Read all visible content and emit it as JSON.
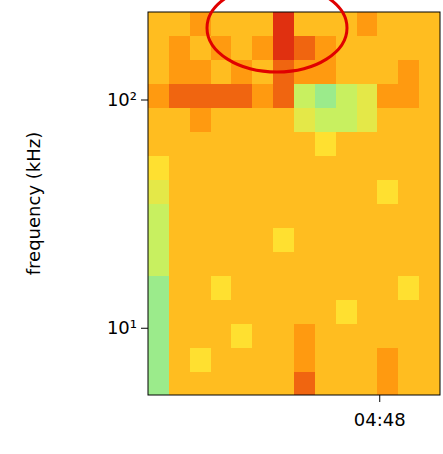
{
  "chart_data": {
    "type": "heatmap",
    "ylabel": "frequency (kHz)",
    "log": "y",
    "xlim": [
      283.0,
      289.3
    ],
    "xticks": [
      {
        "value": 288,
        "label": "04:48"
      }
    ],
    "ylim": [
      5.1,
      243
    ],
    "yticks": [
      {
        "value": 10,
        "label": "10¹"
      },
      {
        "value": 100,
        "label": "10²"
      }
    ],
    "x_edges": [
      283.0,
      283.45,
      283.9,
      284.35,
      284.8,
      285.25,
      285.7,
      286.15,
      286.6,
      287.05,
      287.5,
      287.95,
      288.4,
      288.85,
      289.3
    ],
    "y_edges": [
      5.1,
      6.49,
      8.27,
      10.5,
      13.4,
      17.1,
      21.7,
      27.7,
      35.2,
      44.8,
      57.1,
      72.7,
      92.5,
      117.8,
      150,
      191,
      243
    ],
    "clim": [
      0,
      10
    ],
    "cells": [
      [
        2,
        6,
        6,
        6,
        6,
        6,
        6,
        8,
        6,
        6,
        6,
        7,
        6,
        6
      ],
      [
        2,
        6,
        5,
        6,
        6,
        6,
        6,
        7,
        6,
        6,
        6,
        7,
        6,
        6
      ],
      [
        2,
        6,
        6,
        6,
        5,
        6,
        6,
        7,
        6,
        6,
        6,
        6,
        6,
        6
      ],
      [
        2,
        6,
        6,
        6,
        6,
        6,
        6,
        6,
        6,
        5,
        6,
        6,
        6,
        6
      ],
      [
        2,
        6,
        6,
        5,
        6,
        6,
        6,
        6,
        6,
        6,
        6,
        6,
        5,
        6
      ],
      [
        3,
        6,
        6,
        6,
        6,
        6,
        6,
        6,
        6,
        6,
        6,
        6,
        6,
        6
      ],
      [
        3,
        6,
        6,
        6,
        6,
        6,
        5,
        6,
        6,
        6,
        6,
        6,
        6,
        6
      ],
      [
        3,
        6,
        6,
        6,
        6,
        6,
        6,
        6,
        6,
        6,
        6,
        6,
        6,
        6
      ],
      [
        4,
        6,
        6,
        6,
        6,
        6,
        6,
        6,
        6,
        6,
        6,
        5,
        6,
        6
      ],
      [
        5,
        6,
        6,
        6,
        6,
        6,
        6,
        6,
        6,
        6,
        6,
        6,
        6,
        6
      ],
      [
        6,
        6,
        6,
        6,
        6,
        6,
        6,
        6,
        5,
        6,
        6,
        6,
        6,
        6
      ],
      [
        6,
        6,
        7,
        6,
        6,
        6,
        6,
        4,
        3,
        3,
        4,
        6,
        6,
        6
      ],
      [
        7,
        8,
        8,
        8,
        8,
        7,
        8,
        3,
        2,
        3,
        4,
        7,
        7,
        6
      ],
      [
        6,
        7,
        7,
        6,
        7,
        6,
        8,
        7,
        7,
        6,
        6,
        6,
        7,
        6
      ],
      [
        6,
        7,
        6,
        7,
        6,
        7,
        9,
        8,
        7,
        6,
        6,
        6,
        6,
        6
      ],
      [
        6,
        6,
        7,
        6,
        6,
        6,
        9,
        6,
        6,
        6,
        7,
        6,
        6,
        6
      ]
    ]
  }
}
